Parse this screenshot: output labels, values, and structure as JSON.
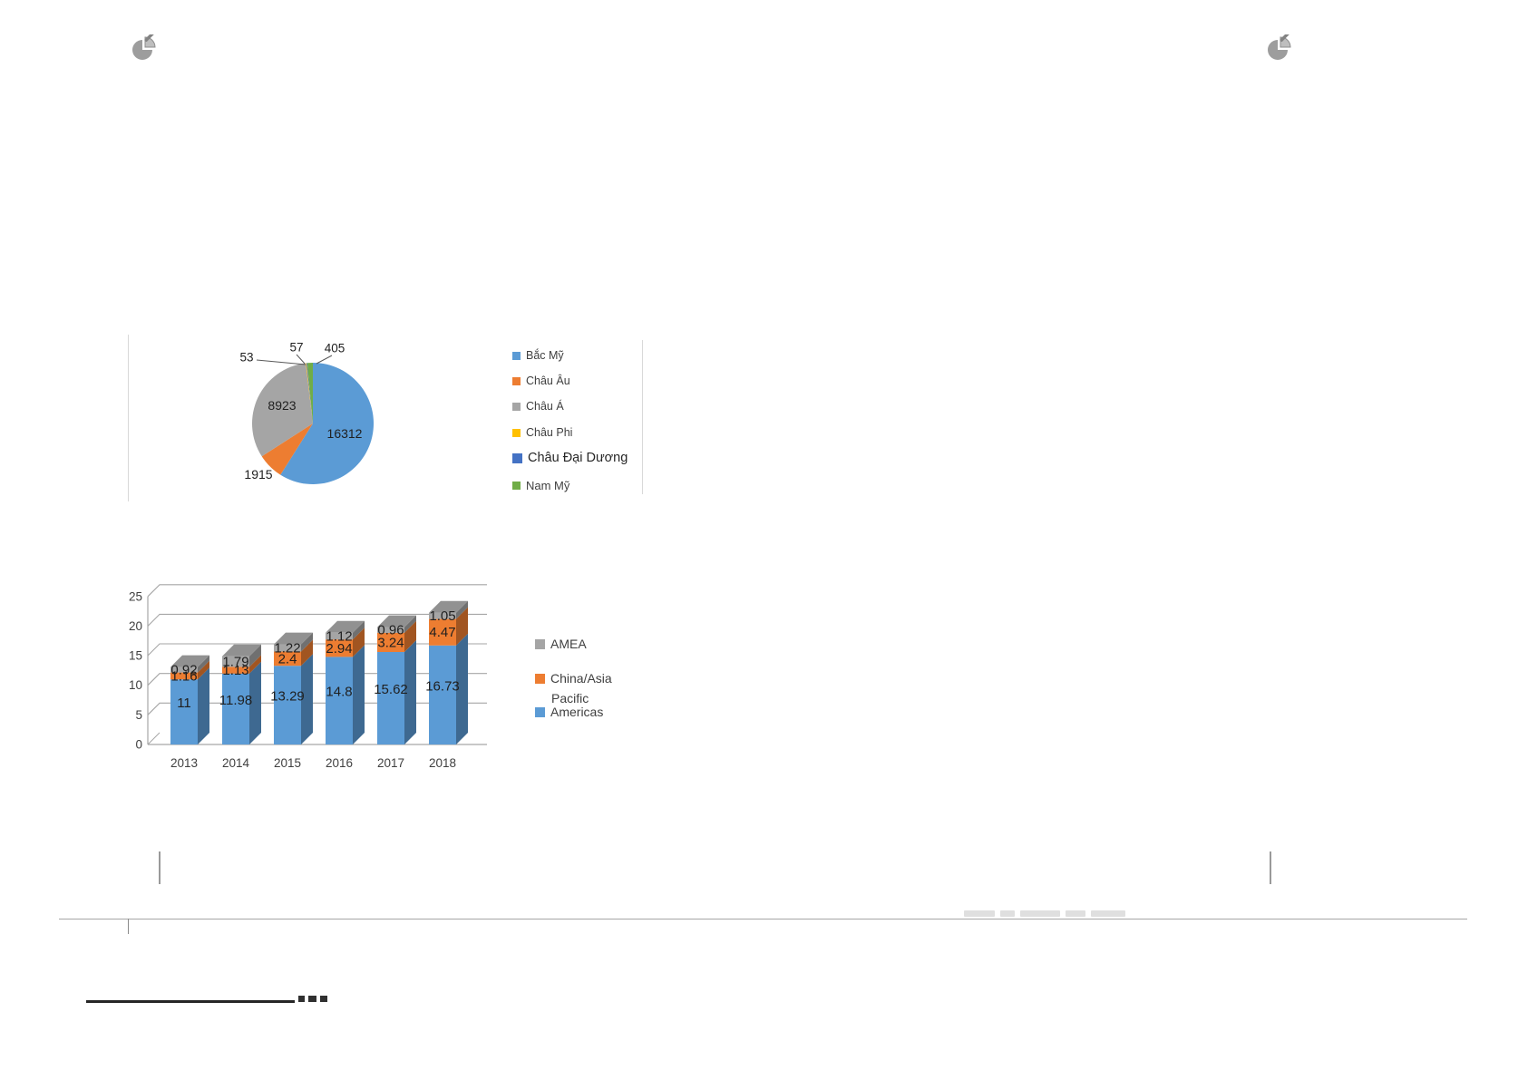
{
  "page": {
    "background": "#ffffff"
  },
  "icons": {
    "top_left": "pie-chart-clipart",
    "top_right": "pie-chart-clipart"
  },
  "chart_data": [
    {
      "type": "pie",
      "title": "",
      "labels": [
        "Bắc Mỹ",
        "Châu Âu",
        "Châu Á",
        "Châu Phi",
        "Châu Đại Dương",
        "Nam Mỹ"
      ],
      "values": [
        16312,
        1915,
        8923,
        53,
        57,
        405
      ],
      "colors": [
        "#5B9BD5",
        "#ED7D31",
        "#A5A5A5",
        "#FFC000",
        "#4472C4",
        "#70AD47"
      ],
      "data_labels": [
        "16312",
        "1915",
        "8923",
        "53",
        "57",
        "405"
      ],
      "legend_position": "right",
      "start_angle_deg": 0,
      "direction": "clockwise"
    },
    {
      "type": "bar",
      "subtype": "3d-stacked-column",
      "categories": [
        "2013",
        "2014",
        "2015",
        "2016",
        "2017",
        "2018"
      ],
      "series": [
        {
          "name": "Americas",
          "color": "#5B9BD5",
          "values": [
            11,
            11.98,
            13.29,
            14.8,
            15.62,
            16.73
          ]
        },
        {
          "name": "China/Asia Pacific",
          "color": "#ED7D31",
          "values": [
            1.16,
            1.13,
            2.4,
            2.94,
            3.24,
            4.47
          ]
        },
        {
          "name": "AMEA",
          "color": "#A5A5A5",
          "values": [
            0.92,
            1.79,
            1.22,
            1.12,
            0.96,
            1.05
          ]
        }
      ],
      "y_ticks": [
        0,
        5,
        10,
        15,
        20,
        25
      ],
      "ylim": [
        0,
        25
      ],
      "grid": true,
      "xlabel": "",
      "ylabel": "",
      "legend_position": "right",
      "legend": [
        {
          "lines": [
            "AMEA"
          ],
          "color": "#A5A5A5"
        },
        {
          "lines": [
            "China/Asia",
            "Pacific"
          ],
          "color": "#ED7D31"
        },
        {
          "lines": [
            "Americas"
          ],
          "color": "#5B9BD5"
        }
      ]
    }
  ],
  "chrome": {
    "grid_color": "#a6a6a6",
    "axis_text_color": "#404040",
    "value_label_color": "#1f1f1f"
  }
}
